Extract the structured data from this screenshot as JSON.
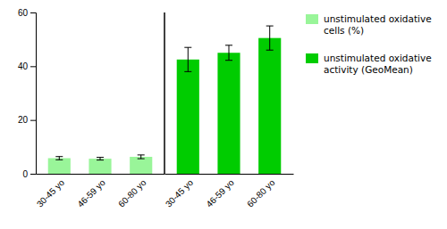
{
  "chart_data": {
    "type": "bar",
    "categories": [
      "30-45 yo",
      "46-59 yo",
      "60-80 yo"
    ],
    "series": [
      {
        "name": "unstimulated oxidative\ncells (%)",
        "color": "#99f599",
        "values": [
          5.8,
          5.6,
          6.3
        ],
        "errors": [
          0.6,
          0.5,
          0.7
        ]
      },
      {
        "name": "unstimulated oxidative\nactivity (GeoMean)",
        "color": "#00cc00",
        "values": [
          42.5,
          45.0,
          50.5
        ],
        "errors": [
          4.5,
          2.8,
          4.5
        ]
      }
    ],
    "ylim": [
      0,
      60
    ],
    "yticks": [
      0,
      20,
      40,
      60
    ]
  }
}
